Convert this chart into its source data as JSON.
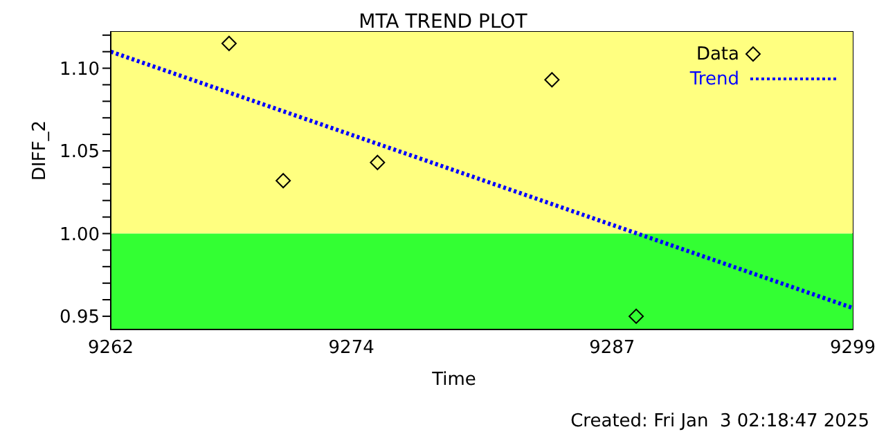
{
  "chart_data": {
    "type": "scatter",
    "title": "MTA TREND PLOT",
    "xlabel": "Time",
    "ylabel": "DIFF_2",
    "xlim": [
      9262,
      9299
    ],
    "xticks": [
      9262,
      9274,
      9287,
      9299
    ],
    "ylim": [
      0.942,
      1.122
    ],
    "yticks": [
      {
        "value": 0.95,
        "label": "0.95"
      },
      {
        "value": 0.96,
        "label": null
      },
      {
        "value": 0.97,
        "label": null
      },
      {
        "value": 0.98,
        "label": null
      },
      {
        "value": 0.99,
        "label": null
      },
      {
        "value": 1.0,
        "label": "1.00"
      },
      {
        "value": 1.01,
        "label": null
      },
      {
        "value": 1.02,
        "label": null
      },
      {
        "value": 1.03,
        "label": null
      },
      {
        "value": 1.04,
        "label": null
      },
      {
        "value": 1.05,
        "label": "1.05"
      },
      {
        "value": 1.06,
        "label": null
      },
      {
        "value": 1.07,
        "label": null
      },
      {
        "value": 1.08,
        "label": null
      },
      {
        "value": 1.09,
        "label": null
      },
      {
        "value": 1.1,
        "label": "1.10"
      },
      {
        "value": 1.11,
        "label": null
      },
      {
        "value": 1.12,
        "label": null
      }
    ],
    "series": [
      {
        "name": "Data",
        "color": "#000000",
        "marker": "diamond",
        "x": [
          9267.9,
          9270.6,
          9275.3,
          9284.0,
          9288.2
        ],
        "values": [
          1.115,
          1.032,
          1.043,
          1.093,
          0.95
        ]
      },
      {
        "name": "Trend",
        "type": "line",
        "color": "#0000ff",
        "marker": "none",
        "line_style": "dotted",
        "x": [
          9262,
          9299
        ],
        "values": [
          1.11,
          0.955
        ]
      }
    ],
    "bands": [
      {
        "axis": "y",
        "from": 1.0,
        "to": 1.122,
        "color": "#ffff80"
      },
      {
        "axis": "y",
        "from": 0.942,
        "to": 1.0,
        "color": "#33ff33"
      }
    ],
    "legend": "top right",
    "grid": false,
    "annotations": [
      "Created: Fri Jan  3 02:18:47 2025"
    ]
  }
}
